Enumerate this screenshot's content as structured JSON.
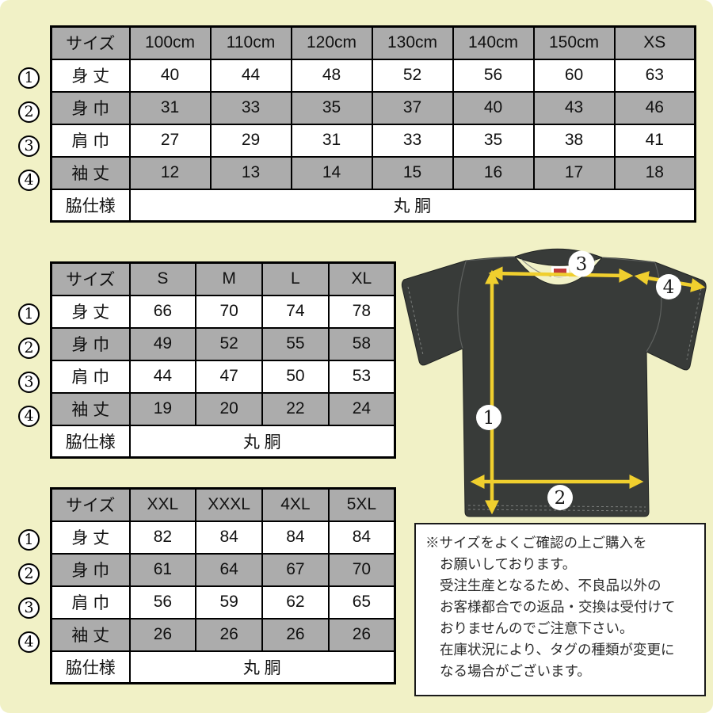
{
  "colors": {
    "background": "#f1f1c6",
    "table_header_gray": "#acacac",
    "cell_white": "#ffffff",
    "table_border": "#000000",
    "tshirt": "#383b39",
    "arrow_yellow": "#f0cf2e"
  },
  "tables": [
    {
      "name": "kids-100cm-xs",
      "header": [
        "サイズ",
        "100cm",
        "110cm",
        "120cm",
        "130cm",
        "140cm",
        "150cm",
        "XS"
      ],
      "rows": [
        {
          "num": "1",
          "label": "身 丈",
          "values": [
            "40",
            "44",
            "48",
            "52",
            "56",
            "60",
            "63"
          ]
        },
        {
          "num": "2",
          "label": "身 巾",
          "values": [
            "31",
            "33",
            "35",
            "37",
            "40",
            "43",
            "46"
          ]
        },
        {
          "num": "3",
          "label": "肩 巾",
          "values": [
            "27",
            "29",
            "31",
            "33",
            "35",
            "38",
            "41"
          ]
        },
        {
          "num": "4",
          "label": "袖 丈",
          "values": [
            "12",
            "13",
            "14",
            "15",
            "16",
            "17",
            "18"
          ]
        }
      ],
      "footer_label": "脇仕様",
      "footer_value": "丸 胴"
    },
    {
      "name": "adult-s-xl",
      "header": [
        "サイズ",
        "S",
        "M",
        "L",
        "XL"
      ],
      "rows": [
        {
          "num": "1",
          "label": "身 丈",
          "values": [
            "66",
            "70",
            "74",
            "78"
          ]
        },
        {
          "num": "2",
          "label": "身 巾",
          "values": [
            "49",
            "52",
            "55",
            "58"
          ]
        },
        {
          "num": "3",
          "label": "肩 巾",
          "values": [
            "44",
            "47",
            "50",
            "53"
          ]
        },
        {
          "num": "4",
          "label": "袖 丈",
          "values": [
            "19",
            "20",
            "22",
            "24"
          ]
        }
      ],
      "footer_label": "脇仕様",
      "footer_value": "丸 胴"
    },
    {
      "name": "adult-xxl-5xl",
      "header": [
        "サイズ",
        "XXL",
        "XXXL",
        "4XL",
        "5XL"
      ],
      "rows": [
        {
          "num": "1",
          "label": "身 丈",
          "values": [
            "82",
            "84",
            "84",
            "84"
          ]
        },
        {
          "num": "2",
          "label": "身 巾",
          "values": [
            "61",
            "64",
            "67",
            "70"
          ]
        },
        {
          "num": "3",
          "label": "肩 巾",
          "values": [
            "56",
            "59",
            "62",
            "65"
          ]
        },
        {
          "num": "4",
          "label": "袖 丈",
          "values": [
            "26",
            "26",
            "26",
            "26"
          ]
        }
      ],
      "footer_label": "脇仕様",
      "footer_value": "丸 胴"
    }
  ],
  "diagram": {
    "badges": [
      "1",
      "2",
      "3",
      "4"
    ]
  },
  "note": {
    "lines": [
      "※サイズをよくご確認の上ご購入を",
      "お願いしております。",
      "受注生産となるため、不良品以外の",
      "お客様都合での返品・交換は受付けて",
      "おりませんのでご注意下さい。",
      "在庫状況により、タグの種類が変更に",
      "なる場合がございます。"
    ]
  }
}
